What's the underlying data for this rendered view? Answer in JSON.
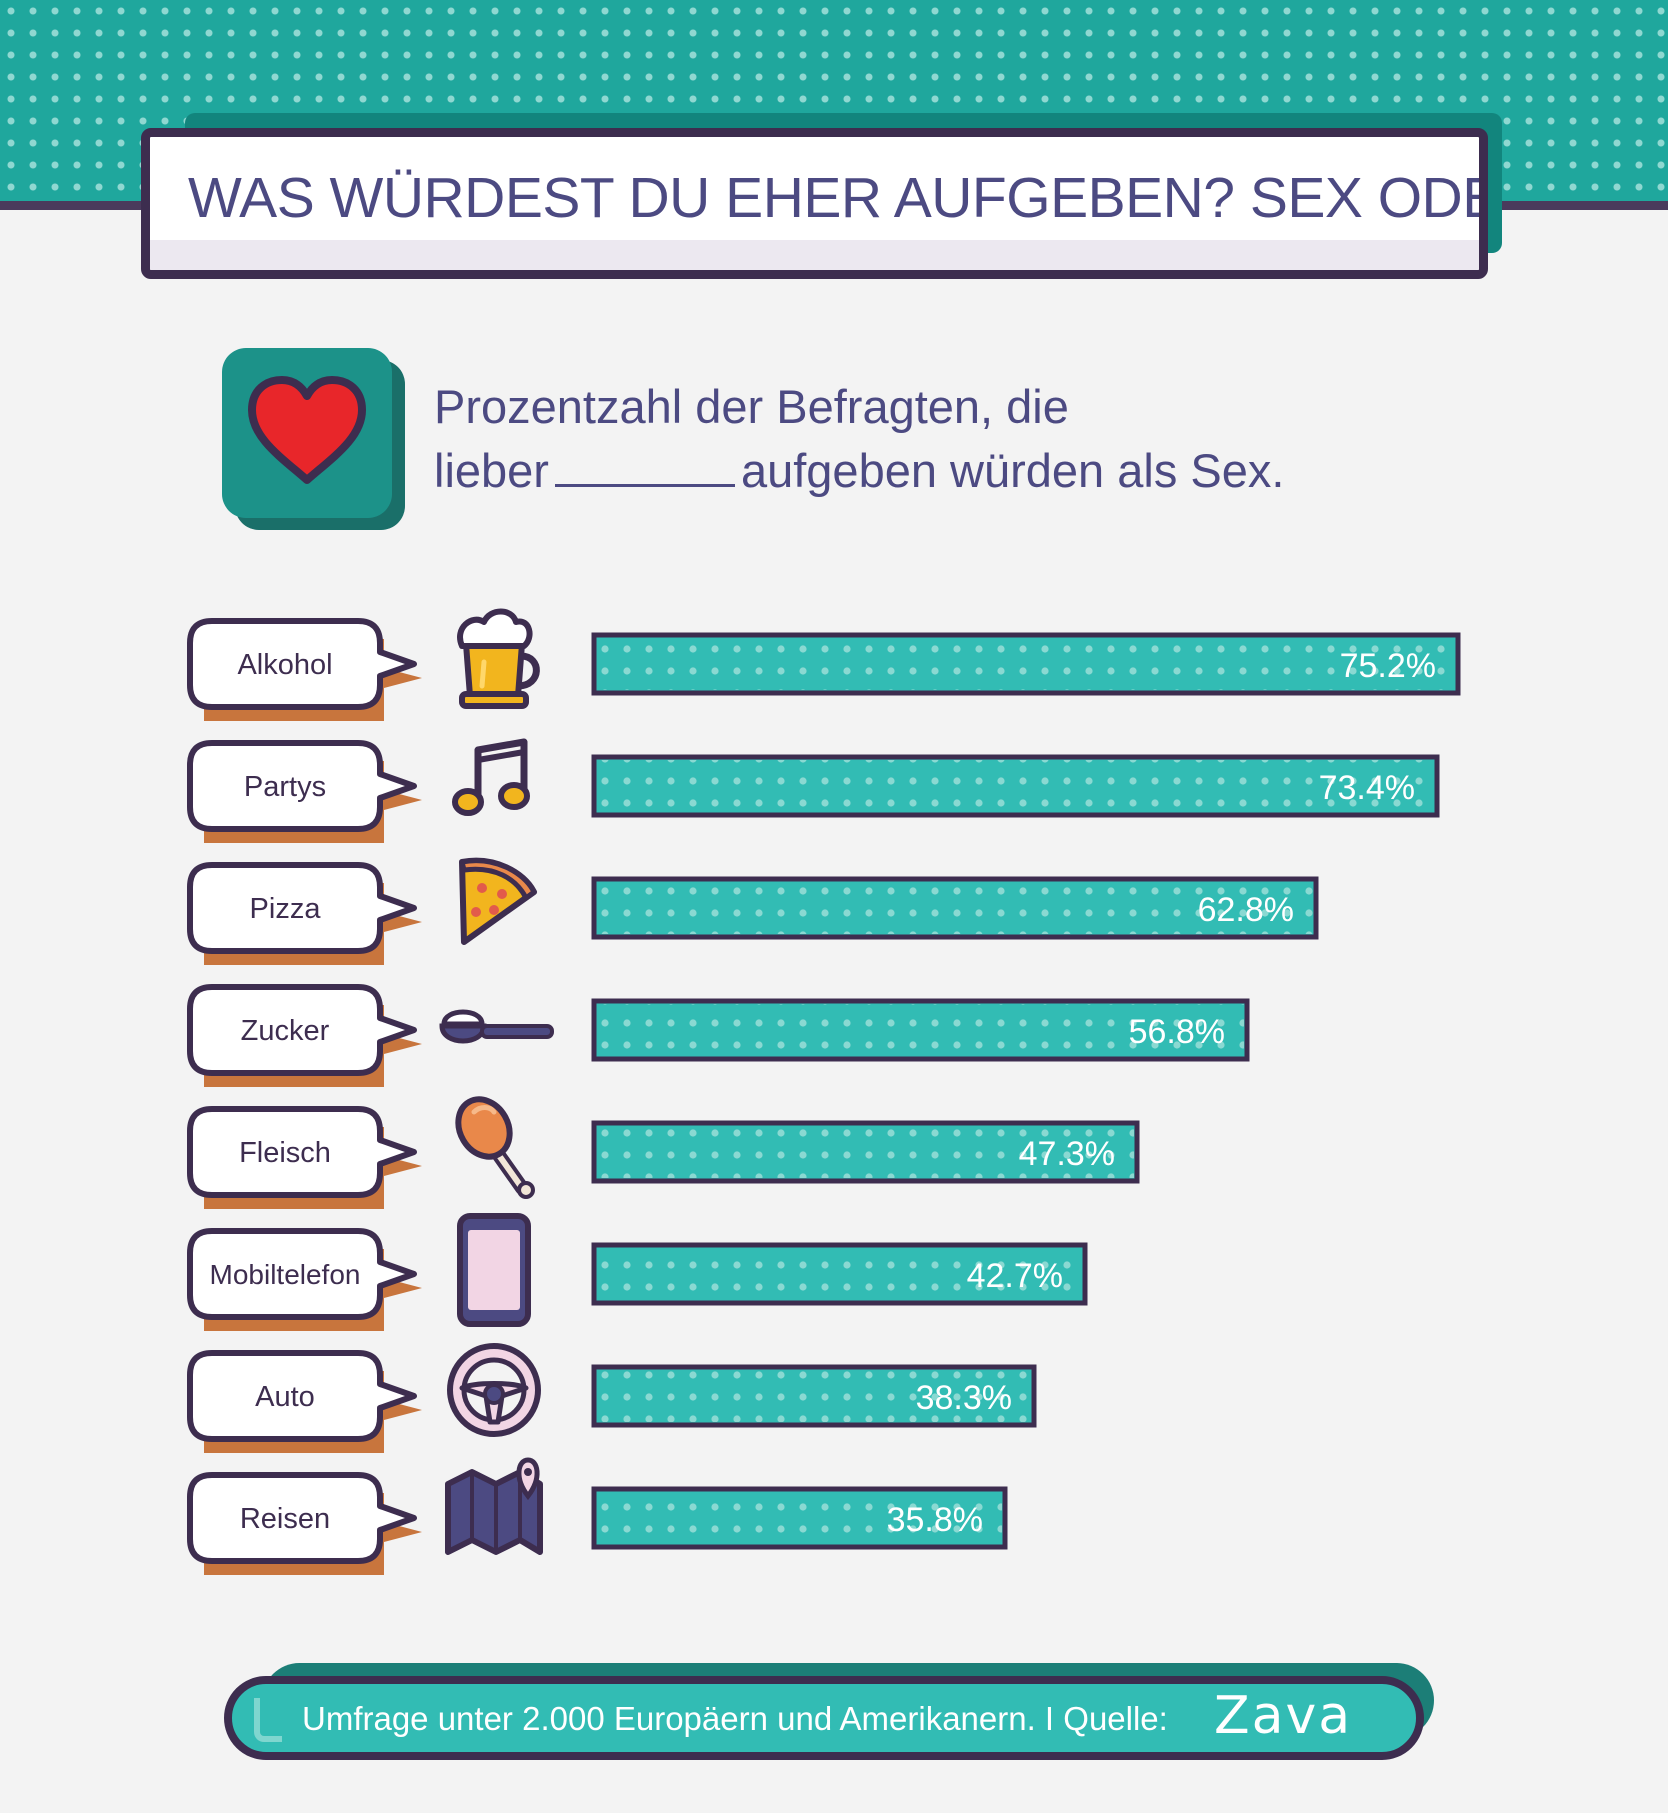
{
  "header": {
    "title": "WAS WÜRDEST DU EHER AUFGEBEN? SEX ODER..."
  },
  "subtitle": {
    "line1": "Prozentzahl der Befragten, die",
    "line2_before": "lieber",
    "line2_after": "aufgeben würden als Sex."
  },
  "icons": {
    "header_icon": "heart-icon"
  },
  "colors": {
    "teal": "#32bcb4",
    "dark_teal": "#1fa79d",
    "outline": "#3d2d4f",
    "text": "#4c4a82",
    "shadow_orange": "#c8753d"
  },
  "chart_data": {
    "type": "bar",
    "orientation": "horizontal",
    "categories": [
      "Alkohol",
      "Partys",
      "Pizza",
      "Zucker",
      "Fleisch",
      "Mobiltelefon",
      "Auto",
      "Reisen"
    ],
    "values": [
      75.2,
      73.4,
      62.8,
      56.8,
      47.3,
      42.7,
      38.3,
      35.8
    ],
    "value_labels": [
      "75.2%",
      "73.4%",
      "62.8%",
      "56.8%",
      "47.3%",
      "42.7%",
      "38.3%",
      "35.8%"
    ],
    "icons": [
      "beer-icon",
      "music-note-icon",
      "pizza-icon",
      "spoon-icon",
      "chicken-leg-icon",
      "phone-icon",
      "steering-wheel-icon",
      "map-icon"
    ],
    "unit": "%",
    "xlim": [
      0,
      75.2
    ],
    "title": "",
    "xlabel": "",
    "ylabel": "",
    "grid": false,
    "legend": "none"
  },
  "footer": {
    "text": "Umfrage unter 2.000 Europäern und Amerikanern. I Quelle:",
    "logo": "Zava"
  }
}
